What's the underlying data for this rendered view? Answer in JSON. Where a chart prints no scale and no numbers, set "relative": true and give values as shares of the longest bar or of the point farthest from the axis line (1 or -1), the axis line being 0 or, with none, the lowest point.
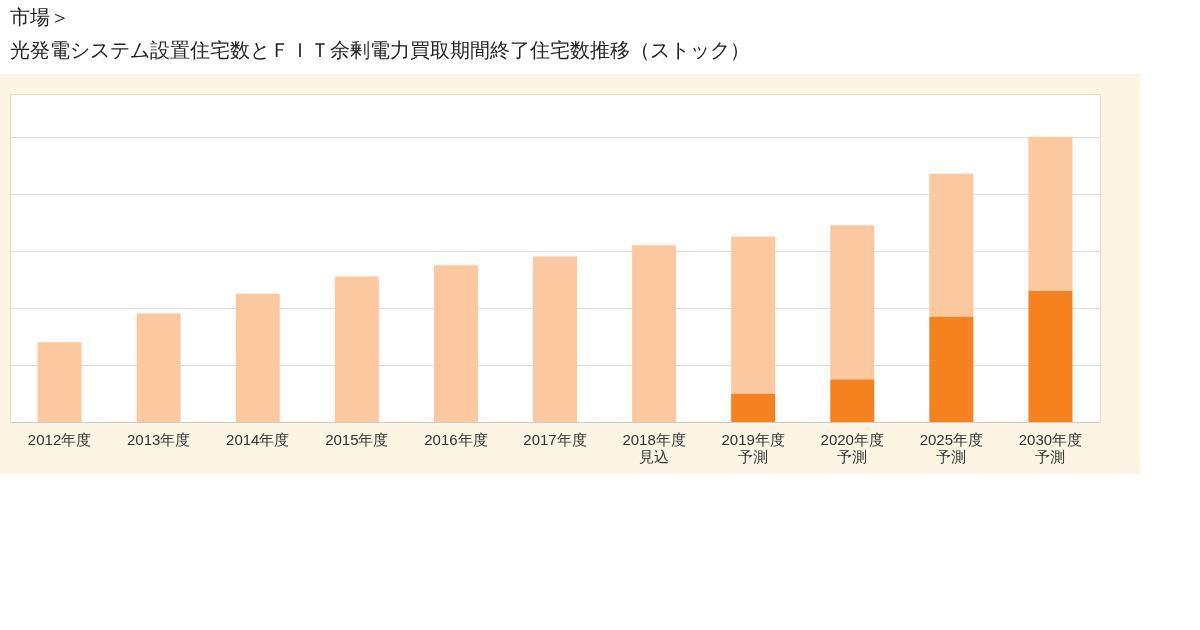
{
  "chart_data": {
    "type": "bar",
    "title": "光発電システム設置住宅数とＦＩＴ余剰電力買取期間終了住宅数推移（ストック）",
    "annotations": [
      "市場＞"
    ],
    "categories": [
      "2012年度",
      "2013年度",
      "2014年度",
      "2015年度",
      "2016年度",
      "2017年度",
      "2018年度見込",
      "2019年度予測",
      "2020年度予測",
      "2025年度予測",
      "2030年度予測"
    ],
    "stacked": true,
    "relative": true,
    "grid": "y",
    "series": [
      {
        "color": "#f5821f",
        "values": [
          null,
          null,
          null,
          null,
          null,
          null,
          null,
          0.1,
          0.15,
          0.37,
          0.46
        ]
      },
      {
        "color": "#fcc8a0",
        "values": [
          0.28,
          0.38,
          0.45,
          0.51,
          0.55,
          0.58,
          0.62,
          0.55,
          0.54,
          0.5,
          0.54
        ]
      }
    ]
  }
}
